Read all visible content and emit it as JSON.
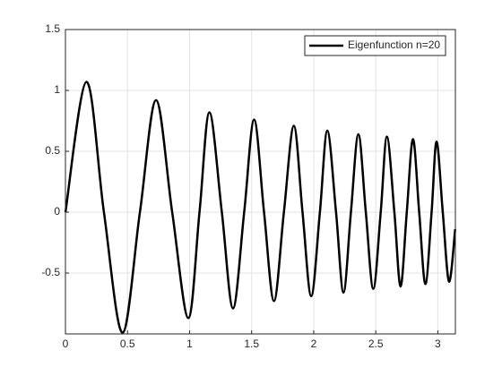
{
  "chart_data": {
    "type": "line",
    "x": [
      0,
      0.17,
      0.31,
      0.46,
      0.6,
      0.73,
      0.86,
      0.99,
      1.08,
      1.16,
      1.26,
      1.35,
      1.44,
      1.52,
      1.6,
      1.68,
      1.76,
      1.84,
      1.91,
      1.98,
      2.05,
      2.11,
      2.18,
      2.24,
      2.3,
      2.36,
      2.42,
      2.48,
      2.54,
      2.59,
      2.65,
      2.7,
      2.75,
      2.8,
      2.85,
      2.9,
      2.95,
      2.99,
      3.04,
      3.09,
      3.14
    ],
    "series": [
      {
        "name": "Eigenfunction n=20",
        "color": "#000000",
        "values": [
          0,
          1.07,
          0,
          -0.99,
          0,
          0.92,
          0,
          -0.87,
          0,
          0.82,
          0,
          -0.79,
          0,
          0.76,
          0,
          -0.73,
          0,
          0.71,
          0,
          -0.69,
          0,
          0.67,
          0,
          -0.66,
          0,
          0.64,
          0,
          -0.63,
          0,
          0.62,
          0,
          -0.61,
          0,
          0.6,
          0,
          -0.59,
          0,
          0.58,
          0,
          -0.57,
          -0.14
        ]
      }
    ],
    "xlim": [
      0,
      3.1416
    ],
    "ylim": [
      -1,
      1.5
    ],
    "xticks": [
      0,
      0.5,
      1,
      1.5,
      2,
      2.5,
      3
    ],
    "yticks": [
      -0.5,
      0,
      0.5,
      1,
      1.5
    ],
    "grid": true,
    "legend": "northeast"
  }
}
